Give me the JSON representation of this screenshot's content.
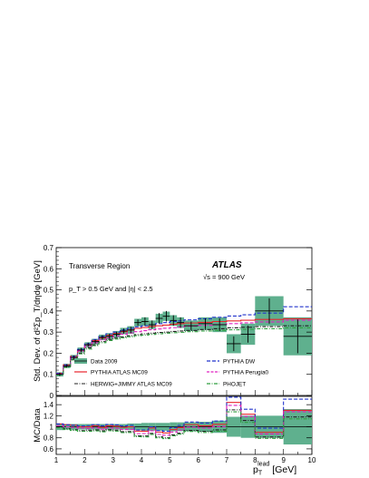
{
  "chart_data": [
    {
      "type": "line",
      "panel": "main",
      "ylabel": "Std. Dev. of d²Σp_T/dηdφ [GeV]",
      "ylim": [
        0,
        0.7
      ],
      "yticks": [
        0,
        0.1,
        0.2,
        0.3,
        0.4,
        0.5,
        0.6,
        0.7
      ],
      "ytick_labels": [
        "0",
        "0.1",
        "0.2",
        "0.3",
        "0.4",
        "0.5",
        "0.6",
        "0.7"
      ],
      "xlim": [
        1,
        10
      ],
      "annotations": {
        "region": "Transverse Region",
        "experiment": "ATLAS",
        "energy": "√s = 900 GeV",
        "cuts": "p_T > 0.5 GeV and |η| < 2.5"
      },
      "legend": {
        "placement": "bottom-left"
      },
      "bin_edges": [
        1,
        1.25,
        1.5,
        1.75,
        2,
        2.25,
        2.5,
        2.75,
        3,
        3.25,
        3.5,
        3.75,
        4,
        4.25,
        4.5,
        4.75,
        5,
        5.25,
        5.5,
        6,
        6.5,
        7,
        7.5,
        8,
        9,
        10
      ],
      "data": {
        "name": "Data 2009",
        "x": [
          1.125,
          1.375,
          1.625,
          1.875,
          2.125,
          2.375,
          2.625,
          2.875,
          3.125,
          3.375,
          3.625,
          3.875,
          4.125,
          4.375,
          4.625,
          4.875,
          5.125,
          5.375,
          5.75,
          6.25,
          6.75,
          7.25,
          7.75,
          8.5,
          9.5
        ],
        "y": [
          0.1,
          0.14,
          0.18,
          0.215,
          0.24,
          0.255,
          0.275,
          0.28,
          0.29,
          0.305,
          0.31,
          0.345,
          0.35,
          0.335,
          0.365,
          0.375,
          0.355,
          0.345,
          0.33,
          0.34,
          0.335,
          0.245,
          0.29,
          0.4,
          0.28
        ],
        "stat_err": [
          0.008,
          0.008,
          0.009,
          0.01,
          0.01,
          0.01,
          0.01,
          0.012,
          0.012,
          0.012,
          0.015,
          0.015,
          0.02,
          0.02,
          0.025,
          0.025,
          0.025,
          0.025,
          0.02,
          0.025,
          0.03,
          0.035,
          0.04,
          0.06,
          0.08
        ],
        "syst_err": [
          0.01,
          0.01,
          0.012,
          0.012,
          0.012,
          0.013,
          0.013,
          0.015,
          0.015,
          0.015,
          0.018,
          0.018,
          0.02,
          0.02,
          0.022,
          0.022,
          0.025,
          0.025,
          0.025,
          0.03,
          0.035,
          0.045,
          0.05,
          0.07,
          0.09
        ]
      },
      "series": [
        {
          "name": "PYTHIA ATLAS MC09",
          "color": "#e8262d",
          "style": "solid",
          "values": [
            0.105,
            0.145,
            0.185,
            0.215,
            0.24,
            0.26,
            0.272,
            0.285,
            0.293,
            0.302,
            0.31,
            0.318,
            0.322,
            0.327,
            0.33,
            0.333,
            0.337,
            0.34,
            0.343,
            0.346,
            0.35,
            0.353,
            0.356,
            0.36,
            0.363
          ]
        },
        {
          "name": "HERWIG+JIMMY ATLAS MC09",
          "color": "#222222",
          "style": "dashdot",
          "values": [
            0.1,
            0.135,
            0.17,
            0.2,
            0.225,
            0.24,
            0.255,
            0.265,
            0.272,
            0.278,
            0.283,
            0.288,
            0.292,
            0.295,
            0.298,
            0.3,
            0.303,
            0.305,
            0.308,
            0.312,
            0.316,
            0.32,
            0.323,
            0.326,
            0.33
          ]
        },
        {
          "name": "PYTHIA DW",
          "color": "#2233cc",
          "style": "dashed",
          "values": [
            0.105,
            0.145,
            0.185,
            0.218,
            0.245,
            0.265,
            0.28,
            0.292,
            0.3,
            0.31,
            0.318,
            0.325,
            0.33,
            0.335,
            0.34,
            0.345,
            0.35,
            0.353,
            0.358,
            0.363,
            0.37,
            0.376,
            0.382,
            0.39,
            0.42
          ]
        },
        {
          "name": "PYTHIA Perugia0",
          "color": "#e020c0",
          "style": "dashed",
          "values": [
            0.102,
            0.14,
            0.178,
            0.21,
            0.233,
            0.25,
            0.263,
            0.274,
            0.282,
            0.29,
            0.296,
            0.302,
            0.307,
            0.311,
            0.315,
            0.318,
            0.321,
            0.324,
            0.328,
            0.332,
            0.336,
            0.34,
            0.344,
            0.348,
            0.356
          ]
        },
        {
          "name": "PHOJET",
          "color": "#2e9e3e",
          "style": "dashdot",
          "values": [
            0.098,
            0.133,
            0.168,
            0.197,
            0.22,
            0.236,
            0.25,
            0.26,
            0.267,
            0.273,
            0.278,
            0.283,
            0.286,
            0.289,
            0.292,
            0.295,
            0.297,
            0.299,
            0.302,
            0.305,
            0.308,
            0.311,
            0.313,
            0.316,
            0.32
          ]
        }
      ]
    },
    {
      "type": "line",
      "panel": "ratio",
      "ylabel": "MC/Data",
      "ylim": [
        0.5,
        1.55
      ],
      "yticks": [
        0.6,
        0.8,
        1,
        1.2,
        1.4
      ],
      "ytick_labels": [
        "0.6",
        "0.8",
        "1",
        "1.2",
        "1.4"
      ],
      "xlabel": "p_T^lead [GeV]",
      "xlim": [
        1,
        10
      ],
      "xticks": [
        1,
        2,
        3,
        4,
        5,
        6,
        7,
        8,
        9,
        10
      ],
      "xtick_labels": [
        "1",
        "2",
        "3",
        "4",
        "5",
        "6",
        "7",
        "8",
        "9",
        "10"
      ],
      "band_halfwidth": [
        0.06,
        0.05,
        0.05,
        0.05,
        0.05,
        0.05,
        0.05,
        0.05,
        0.05,
        0.05,
        0.06,
        0.06,
        0.07,
        0.07,
        0.07,
        0.07,
        0.08,
        0.08,
        0.08,
        0.09,
        0.11,
        0.18,
        0.2,
        0.2,
        0.32
      ]
    }
  ]
}
